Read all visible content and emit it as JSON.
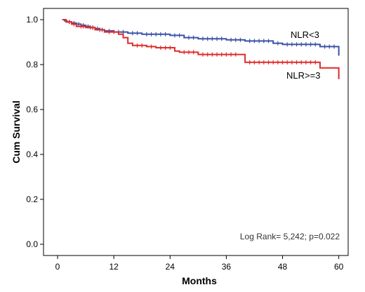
{
  "chart_data": {
    "type": "line",
    "subtype": "kaplan-meier step",
    "title": "",
    "xlabel": "Months",
    "ylabel": "Cum Survival",
    "xlim": [
      -3,
      62
    ],
    "ylim": [
      -0.05,
      1.05
    ],
    "x_ticks": [
      0,
      12,
      24,
      36,
      48,
      60
    ],
    "x_tick_labels": [
      "0",
      "12",
      "24",
      "36",
      "48",
      "60"
    ],
    "y_ticks": [
      0.0,
      0.2,
      0.4,
      0.6,
      0.8,
      1.0
    ],
    "y_tick_labels": [
      "0.0",
      "0.2",
      "0.4",
      "0.6",
      "0.8",
      "1.0"
    ],
    "grid": false,
    "annotation": "Log Rank= 5,242; p=0.022",
    "series": [
      {
        "name": "NLR<3",
        "color": "#3a52a8",
        "steps": [
          [
            1,
            1.0
          ],
          [
            1.5,
            0.995
          ],
          [
            2,
            0.99
          ],
          [
            3,
            0.985
          ],
          [
            4,
            0.98
          ],
          [
            5,
            0.975
          ],
          [
            6,
            0.97
          ],
          [
            7,
            0.965
          ],
          [
            8,
            0.96
          ],
          [
            9,
            0.955
          ],
          [
            10,
            0.95
          ],
          [
            12,
            0.945
          ],
          [
            15,
            0.94
          ],
          [
            18,
            0.935
          ],
          [
            24,
            0.93
          ],
          [
            27,
            0.92
          ],
          [
            30,
            0.915
          ],
          [
            36,
            0.91
          ],
          [
            40,
            0.905
          ],
          [
            46,
            0.895
          ],
          [
            48,
            0.89
          ],
          [
            56,
            0.88
          ],
          [
            60,
            0.84
          ]
        ],
        "censor_x": [
          2.5,
          3.5,
          4.5,
          5.5,
          6.5,
          7.5,
          8.5,
          9.5,
          11,
          13,
          14,
          16,
          17,
          19,
          20,
          21,
          22,
          23,
          25,
          26,
          28,
          29,
          31,
          32,
          33,
          34,
          35,
          37,
          38,
          39,
          41,
          42,
          43,
          44,
          45,
          47,
          49,
          50,
          51,
          52,
          53,
          54,
          55,
          57,
          58,
          59
        ]
      },
      {
        "name": "NLR>=3",
        "color": "#e02a2a",
        "steps": [
          [
            1,
            1.0
          ],
          [
            1.8,
            0.99
          ],
          [
            3,
            0.98
          ],
          [
            4,
            0.97
          ],
          [
            6,
            0.965
          ],
          [
            8,
            0.955
          ],
          [
            10,
            0.945
          ],
          [
            13,
            0.935
          ],
          [
            14,
            0.92
          ],
          [
            15,
            0.895
          ],
          [
            16,
            0.885
          ],
          [
            19,
            0.88
          ],
          [
            21,
            0.875
          ],
          [
            25,
            0.86
          ],
          [
            26,
            0.855
          ],
          [
            30,
            0.845
          ],
          [
            40,
            0.81
          ],
          [
            56,
            0.785
          ],
          [
            60,
            0.735
          ]
        ],
        "censor_x": [
          2.5,
          3.5,
          5,
          5.5,
          7,
          7.5,
          9,
          11,
          12,
          17,
          18,
          20,
          22,
          23,
          24,
          27,
          28,
          29,
          31,
          32,
          33,
          34,
          35,
          36,
          37,
          38,
          41,
          42,
          43,
          44,
          45,
          46,
          47,
          48,
          49,
          50,
          51,
          52,
          53,
          54,
          55
        ]
      }
    ]
  }
}
